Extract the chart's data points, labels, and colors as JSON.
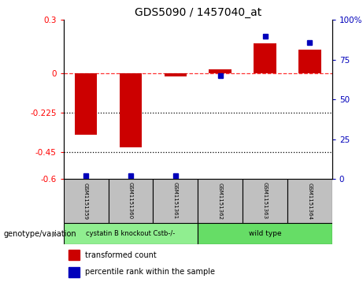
{
  "title": "GDS5090 / 1457040_at",
  "samples": [
    "GSM1151359",
    "GSM1151360",
    "GSM1151361",
    "GSM1151362",
    "GSM1151363",
    "GSM1151364"
  ],
  "red_bars": [
    -0.35,
    -0.42,
    -0.02,
    0.02,
    0.17,
    0.13
  ],
  "blue_dots": [
    2,
    2,
    2,
    65,
    90,
    86
  ],
  "ylim_left": [
    -0.6,
    0.3
  ],
  "ylim_right": [
    0,
    100
  ],
  "yticks_left": [
    0.3,
    0,
    -0.225,
    -0.45,
    -0.6
  ],
  "yticks_right": [
    100,
    75,
    50,
    25,
    0
  ],
  "hlines": [
    0.0,
    -0.225,
    -0.45
  ],
  "group1_label": "cystatin B knockout Cstb-/-",
  "group2_label": "wild type",
  "group1_color": "#90EE90",
  "group2_color": "#66DD66",
  "group1_count": 3,
  "group2_count": 3,
  "bar_color": "#CC0000",
  "dot_color": "#0000BB",
  "background_color": "#ffffff",
  "genotype_label": "genotype/variation",
  "legend1": "transformed count",
  "legend2": "percentile rank within the sample",
  "bar_width": 0.5
}
